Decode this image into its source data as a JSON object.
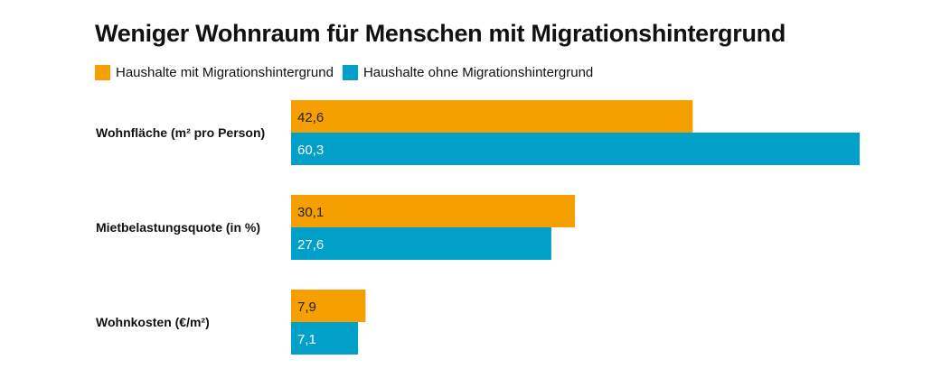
{
  "chart_data": {
    "type": "bar",
    "orientation": "horizontal",
    "title": "Weniger Wohnraum für Menschen mit Migrationshintergrund",
    "legend_position": "top-left",
    "grid": false,
    "categories": [
      "Wohnfläche (m² pro Person)",
      "Mietbelastungsquote (in %)",
      "Wohnkosten (€/m²)"
    ],
    "series": [
      {
        "name": "Haushalte mit Migrationshintergrund",
        "color": "#f5a000",
        "label_color": "#222222",
        "values": [
          42.6,
          30.1,
          7.9
        ],
        "value_labels": [
          "42,6",
          "30,1",
          "7,9"
        ]
      },
      {
        "name": "Haushalte ohne Migrationshintergrund",
        "color": "#00a0c8",
        "label_color": "#ffffff",
        "values": [
          60.3,
          27.6,
          7.1
        ],
        "value_labels": [
          "60,3",
          "27,6",
          "7,1"
        ]
      }
    ]
  }
}
